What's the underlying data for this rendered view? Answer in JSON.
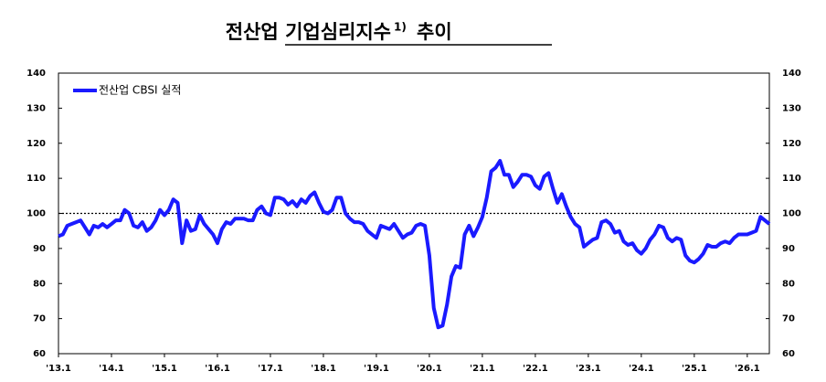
{
  "chart_data": {
    "type": "line",
    "title": "전산업 기업심리지수",
    "title_note": "1)",
    "title_suffix": "추이",
    "categories": [
      "'13.1",
      null,
      null,
      null,
      null,
      null,
      null,
      null,
      null,
      null,
      null,
      null,
      "'14.1",
      null,
      null,
      null,
      null,
      null,
      null,
      null,
      null,
      null,
      null,
      null,
      "'15.1",
      null,
      null,
      null,
      null,
      null,
      null,
      null,
      null,
      null,
      null,
      null,
      "'16.1",
      null,
      null,
      null,
      null,
      null,
      null,
      null,
      null,
      null,
      null,
      null,
      "'17.1",
      null,
      null,
      null,
      null,
      null,
      null,
      null,
      null,
      null,
      null,
      null,
      "'18.1",
      null,
      null,
      null,
      null,
      null,
      null,
      null,
      null,
      null,
      null,
      null,
      "'19.1",
      null,
      null,
      null,
      null,
      null,
      null,
      null,
      null,
      null,
      null,
      null,
      "'20.1",
      null,
      null,
      null,
      null,
      null,
      null,
      null,
      null,
      null,
      null,
      null,
      "'21.1",
      null,
      null,
      null,
      null,
      null,
      null,
      null,
      null,
      null,
      null,
      null,
      "'22.1",
      null,
      null,
      null,
      null,
      null,
      null,
      null,
      null,
      null,
      null,
      null,
      "'23.1",
      null,
      null,
      null,
      null,
      null,
      null,
      null,
      null,
      null,
      null,
      null,
      "'24.1",
      null,
      null,
      null,
      null,
      null,
      null,
      null,
      null,
      null,
      null,
      null,
      "'25.1",
      null,
      null,
      null,
      null,
      null,
      null,
      null,
      null,
      null,
      null,
      null,
      "'26.1",
      null,
      null,
      null,
      null,
      null
    ],
    "series": [
      {
        "name": "전산업 CBSI 실적",
        "color": "#1a1aff",
        "values": [
          93.5,
          94,
          96.5,
          97,
          97.5,
          98,
          96,
          94,
          96.5,
          96,
          97,
          96,
          97,
          98,
          98,
          101,
          100,
          96.5,
          96,
          97.5,
          95,
          96,
          98,
          101,
          99.5,
          101,
          104,
          103,
          91.5,
          98,
          95,
          95.5,
          99.5,
          97,
          95.5,
          94,
          91.5,
          95.5,
          97.5,
          97,
          98.5,
          98.5,
          98.5,
          98,
          98,
          101,
          102,
          100,
          99.5,
          104.5,
          104.5,
          104,
          102.5,
          103.5,
          102,
          104,
          103,
          105,
          106,
          103,
          100.5,
          100,
          101,
          104.5,
          104.5,
          100,
          98.5,
          97.5,
          97.5,
          97,
          95,
          94,
          93,
          96.5,
          96,
          95.5,
          97,
          95,
          93,
          94,
          94.5,
          96.5,
          97,
          96.5,
          88,
          73,
          67.5,
          68,
          74,
          82,
          85,
          84.5,
          94,
          96.5,
          93.5,
          96,
          99,
          104.5,
          112,
          113,
          115,
          111,
          111,
          107.5,
          109,
          111,
          111,
          110.5,
          108,
          107,
          110.5,
          111.5,
          107,
          103,
          105.5,
          102,
          99,
          97,
          96,
          90.5,
          91.5,
          92.5,
          93,
          97.5,
          98,
          97,
          94.5,
          95,
          92,
          91,
          91.5,
          89.5,
          88.5,
          90,
          92.5,
          94,
          96.5,
          96,
          93,
          92,
          93,
          92.5,
          88,
          86.5,
          86,
          87,
          88.5,
          91,
          90.5,
          90.5,
          91.5,
          92,
          91.5,
          93,
          94,
          94,
          94,
          94.5,
          95,
          99,
          98,
          97
        ]
      }
    ],
    "ylim": [
      60,
      140
    ],
    "yticks": [
      60,
      70,
      80,
      90,
      100,
      110,
      120,
      130,
      140
    ],
    "y2lim": [
      60,
      140
    ],
    "y2ticks": [
      60,
      70,
      80,
      90,
      100,
      110,
      120,
      130,
      140
    ],
    "reference_line": 100,
    "legend": "top-left"
  }
}
